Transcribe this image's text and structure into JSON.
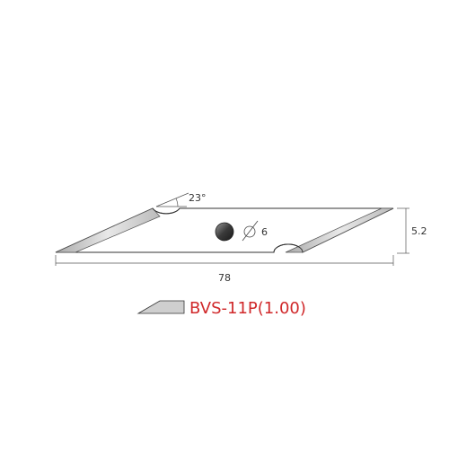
{
  "blade": {
    "angle_label": "23°",
    "hole_label": "6",
    "height_label": "5.2",
    "length_label": "78"
  },
  "product": {
    "model_label": "BVS-11P(1.00)"
  },
  "colors": {
    "model_text": "#d0282a",
    "outline": "#333333",
    "hole_fill": "#3a3a3a",
    "bevel_fill": "#c8c8c8"
  }
}
